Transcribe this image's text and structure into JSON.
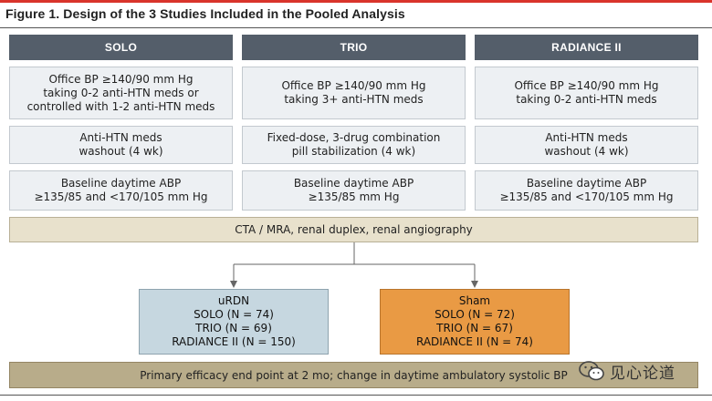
{
  "figure_title": "Figure 1. Design of the 3 Studies Included in the Pooled Analysis",
  "studies": [
    {
      "name": "SOLO",
      "eligibility": "Office BP ≥140/90 mm Hg\ntaking 0-2 anti-HTN meds or\ncontrolled with 1-2 anti-HTN meds",
      "medication": "Anti-HTN meds\nwashout (4 wk)",
      "baseline": "Baseline daytime ABP\n≥135/85 and <170/105 mm Hg"
    },
    {
      "name": "TRIO",
      "eligibility": "Office BP ≥140/90 mm Hg\ntaking 3+ anti-HTN meds",
      "medication": "Fixed-dose, 3-drug combination\npill stabilization (4 wk)",
      "baseline": "Baseline daytime ABP\n≥135/85 mm Hg"
    },
    {
      "name": "RADIANCE II",
      "eligibility": "Office BP ≥140/90 mm Hg\ntaking 0-2 anti-HTN meds",
      "medication": "Anti-HTN meds\nwashout (4 wk)",
      "baseline": "Baseline daytime ABP\n≥135/85 and <170/105 mm Hg"
    }
  ],
  "imaging": "CTA / MRA, renal duplex, renal angiography",
  "arms": {
    "urdn": {
      "title": "uRDN",
      "lines": [
        "SOLO (N = 74)",
        "TRIO (N = 69)",
        "RADIANCE II (N = 150)"
      ],
      "color": "#c6d7e0"
    },
    "sham": {
      "title": "Sham",
      "lines": [
        "SOLO (N = 72)",
        "TRIO (N = 67)",
        "RADIANCE II (N = 74)"
      ],
      "color": "#e99a44"
    }
  },
  "endpoint": "Primary efficacy end point at 2 mo; change in daytime ambulatory systolic BP",
  "watermark": {
    "text": "见心论道",
    "icon": "wechat-icon"
  },
  "colors": {
    "header": "#545e6a",
    "cell": "#edf0f3",
    "imaging_bar": "#e8e1cc",
    "endpoint_bar": "#b8ac8a",
    "accent_rule": "#d9342b"
  }
}
